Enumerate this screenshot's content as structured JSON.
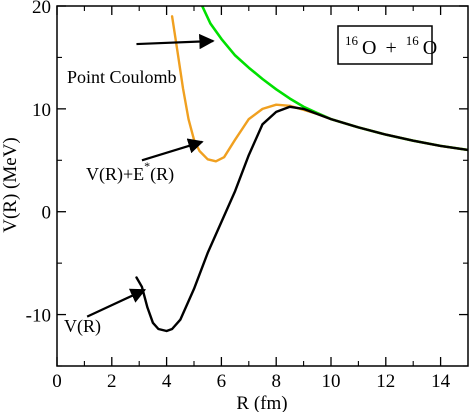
{
  "chart_data": {
    "type": "line",
    "title": "",
    "xlabel": "R (fm)",
    "ylabel": "V(R) (MeV)",
    "xlim": [
      0,
      15
    ],
    "ylim": [
      -15,
      20
    ],
    "grid": false,
    "x_ticks": [
      0,
      2,
      4,
      6,
      8,
      10,
      12,
      14
    ],
    "x_tick_labels": [
      "0",
      "2",
      "4",
      "6",
      "8",
      "10",
      "12",
      "14"
    ],
    "y_ticks": [
      -10,
      0,
      10,
      20
    ],
    "y_tick_labels": [
      "-10",
      "0",
      "10",
      "20"
    ],
    "legend_box": {
      "isotope_mass_1": "16",
      "element_1": "O",
      "operator": " + ",
      "isotope_mass_2": "16",
      "element_2": "O",
      "position": "top-right"
    },
    "series": [
      {
        "name": "Point Coulomb",
        "color": "#00e000",
        "points": [
          [
            5.3,
            20
          ],
          [
            5.6,
            18.3
          ],
          [
            6.0,
            16.8
          ],
          [
            6.5,
            15.2
          ],
          [
            7.0,
            14.0
          ],
          [
            7.5,
            12.9
          ],
          [
            8.0,
            11.9
          ],
          [
            8.5,
            11.0
          ],
          [
            9.0,
            10.2
          ],
          [
            9.5,
            9.6
          ],
          [
            10.0,
            9.0
          ],
          [
            11.0,
            8.2
          ],
          [
            12.0,
            7.5
          ],
          [
            13.0,
            6.9
          ],
          [
            14.0,
            6.4
          ],
          [
            15.0,
            6.0
          ]
        ]
      },
      {
        "name": "V(R)+E*(R)",
        "color": "#f0a020",
        "points": [
          [
            4.2,
            19.0
          ],
          [
            4.4,
            15.5
          ],
          [
            4.6,
            12.0
          ],
          [
            4.8,
            9.0
          ],
          [
            5.0,
            7.0
          ],
          [
            5.2,
            5.9
          ],
          [
            5.5,
            5.1
          ],
          [
            5.8,
            4.9
          ],
          [
            6.1,
            5.3
          ],
          [
            6.5,
            7.0
          ],
          [
            7.0,
            9.0
          ],
          [
            7.5,
            10.0
          ],
          [
            8.0,
            10.4
          ],
          [
            8.5,
            10.3
          ],
          [
            9.0,
            9.9
          ],
          [
            9.5,
            9.5
          ],
          [
            10.0,
            9.0
          ],
          [
            11.0,
            8.2
          ],
          [
            12.0,
            7.5
          ],
          [
            13.0,
            6.9
          ],
          [
            14.0,
            6.4
          ],
          [
            15.0,
            6.0
          ]
        ]
      },
      {
        "name": "V(R)",
        "color": "#000000",
        "points": [
          [
            2.9,
            -6.4
          ],
          [
            3.1,
            -7.3
          ],
          [
            3.3,
            -9.3
          ],
          [
            3.5,
            -10.8
          ],
          [
            3.7,
            -11.4
          ],
          [
            4.0,
            -11.6
          ],
          [
            4.2,
            -11.4
          ],
          [
            4.5,
            -10.5
          ],
          [
            5.0,
            -7.5
          ],
          [
            5.5,
            -4.0
          ],
          [
            6.0,
            -1.0
          ],
          [
            6.5,
            2.0
          ],
          [
            7.0,
            5.5
          ],
          [
            7.5,
            8.5
          ],
          [
            8.0,
            9.7
          ],
          [
            8.5,
            10.2
          ],
          [
            9.0,
            10.0
          ],
          [
            9.5,
            9.5
          ],
          [
            10.0,
            9.0
          ],
          [
            11.0,
            8.2
          ],
          [
            12.0,
            7.5
          ],
          [
            13.0,
            6.9
          ],
          [
            14.0,
            6.4
          ],
          [
            15.0,
            6.0
          ]
        ]
      }
    ],
    "annotations": [
      {
        "id": "coulomb",
        "text": "Point Coulomb",
        "arrow_from": [
          2.9,
          16.3
        ],
        "arrow_to": [
          5.7,
          16.6
        ]
      },
      {
        "id": "ve",
        "text_main": "V(R)+E",
        "text_sup": "*",
        "text_tail": "(R)",
        "arrow_from": [
          3.1,
          5.0
        ],
        "arrow_to": [
          5.3,
          6.8
        ]
      },
      {
        "id": "v",
        "text": "V(R)",
        "arrow_from": [
          1.1,
          -10.2
        ],
        "arrow_to": [
          3.2,
          -7.6
        ]
      }
    ]
  }
}
